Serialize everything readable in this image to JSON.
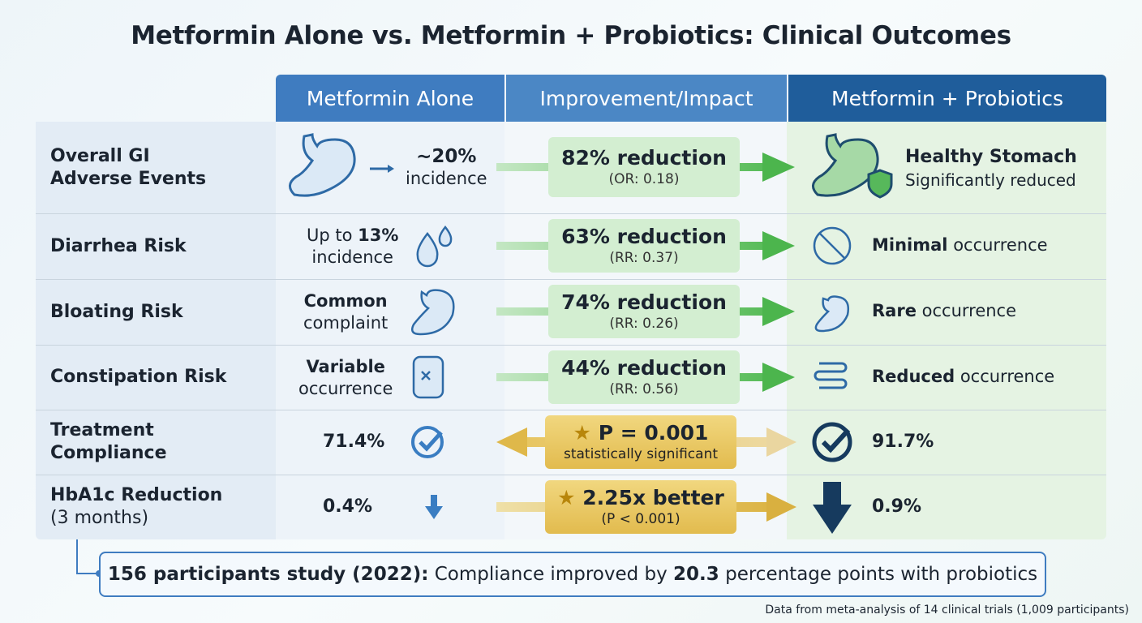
{
  "title": "Metformin Alone vs. Metformin + Probiotics: Clinical Outcomes",
  "columns": [
    "Metformin Alone",
    "Improvement/Impact",
    "Metformin + Probiotics"
  ],
  "rows": [
    {
      "label": [
        "Overall GI",
        "Adverse Events"
      ],
      "alone": [
        "~20%",
        "incidence"
      ],
      "impact": [
        "82% reduction",
        "(OR: 0.18)"
      ],
      "probiotics": [
        "Healthy Stomach",
        "Significantly reduced"
      ]
    },
    {
      "label": [
        "Diarrhea Risk"
      ],
      "alone": [
        "Up to",
        "13%",
        "incidence"
      ],
      "impact": [
        "63% reduction",
        "(RR: 0.37)"
      ],
      "probiotics": [
        "Minimal",
        "occurrence"
      ]
    },
    {
      "label": [
        "Bloating Risk"
      ],
      "alone": [
        "Common",
        "complaint"
      ],
      "impact": [
        "74% reduction",
        "(RR: 0.26)"
      ],
      "probiotics": [
        "Rare",
        "occurrence"
      ]
    },
    {
      "label": [
        "Constipation Risk"
      ],
      "alone": [
        "Variable",
        "occurrence"
      ],
      "impact": [
        "44% reduction",
        "(RR: 0.56)"
      ],
      "probiotics": [
        "Reduced",
        "occurrence"
      ]
    },
    {
      "label": [
        "Treatment Compliance"
      ],
      "alone": [
        "71.4%"
      ],
      "impact": [
        "P = 0.001",
        "statistically significant"
      ],
      "probiotics": [
        "91.7%"
      ]
    },
    {
      "label": [
        "HbA1c Reduction",
        "(3 months)"
      ],
      "alone": [
        "0.4%"
      ],
      "impact": [
        "2.25x better",
        "(P < 0.001)"
      ],
      "probiotics": [
        "0.9%"
      ]
    }
  ],
  "note": [
    "156 participants study (2022):",
    "Compliance improved by",
    "20.3",
    "percentage points with probiotics"
  ],
  "source": "Data from meta-analysis of 14 clinical trials (1,009 participants)"
}
